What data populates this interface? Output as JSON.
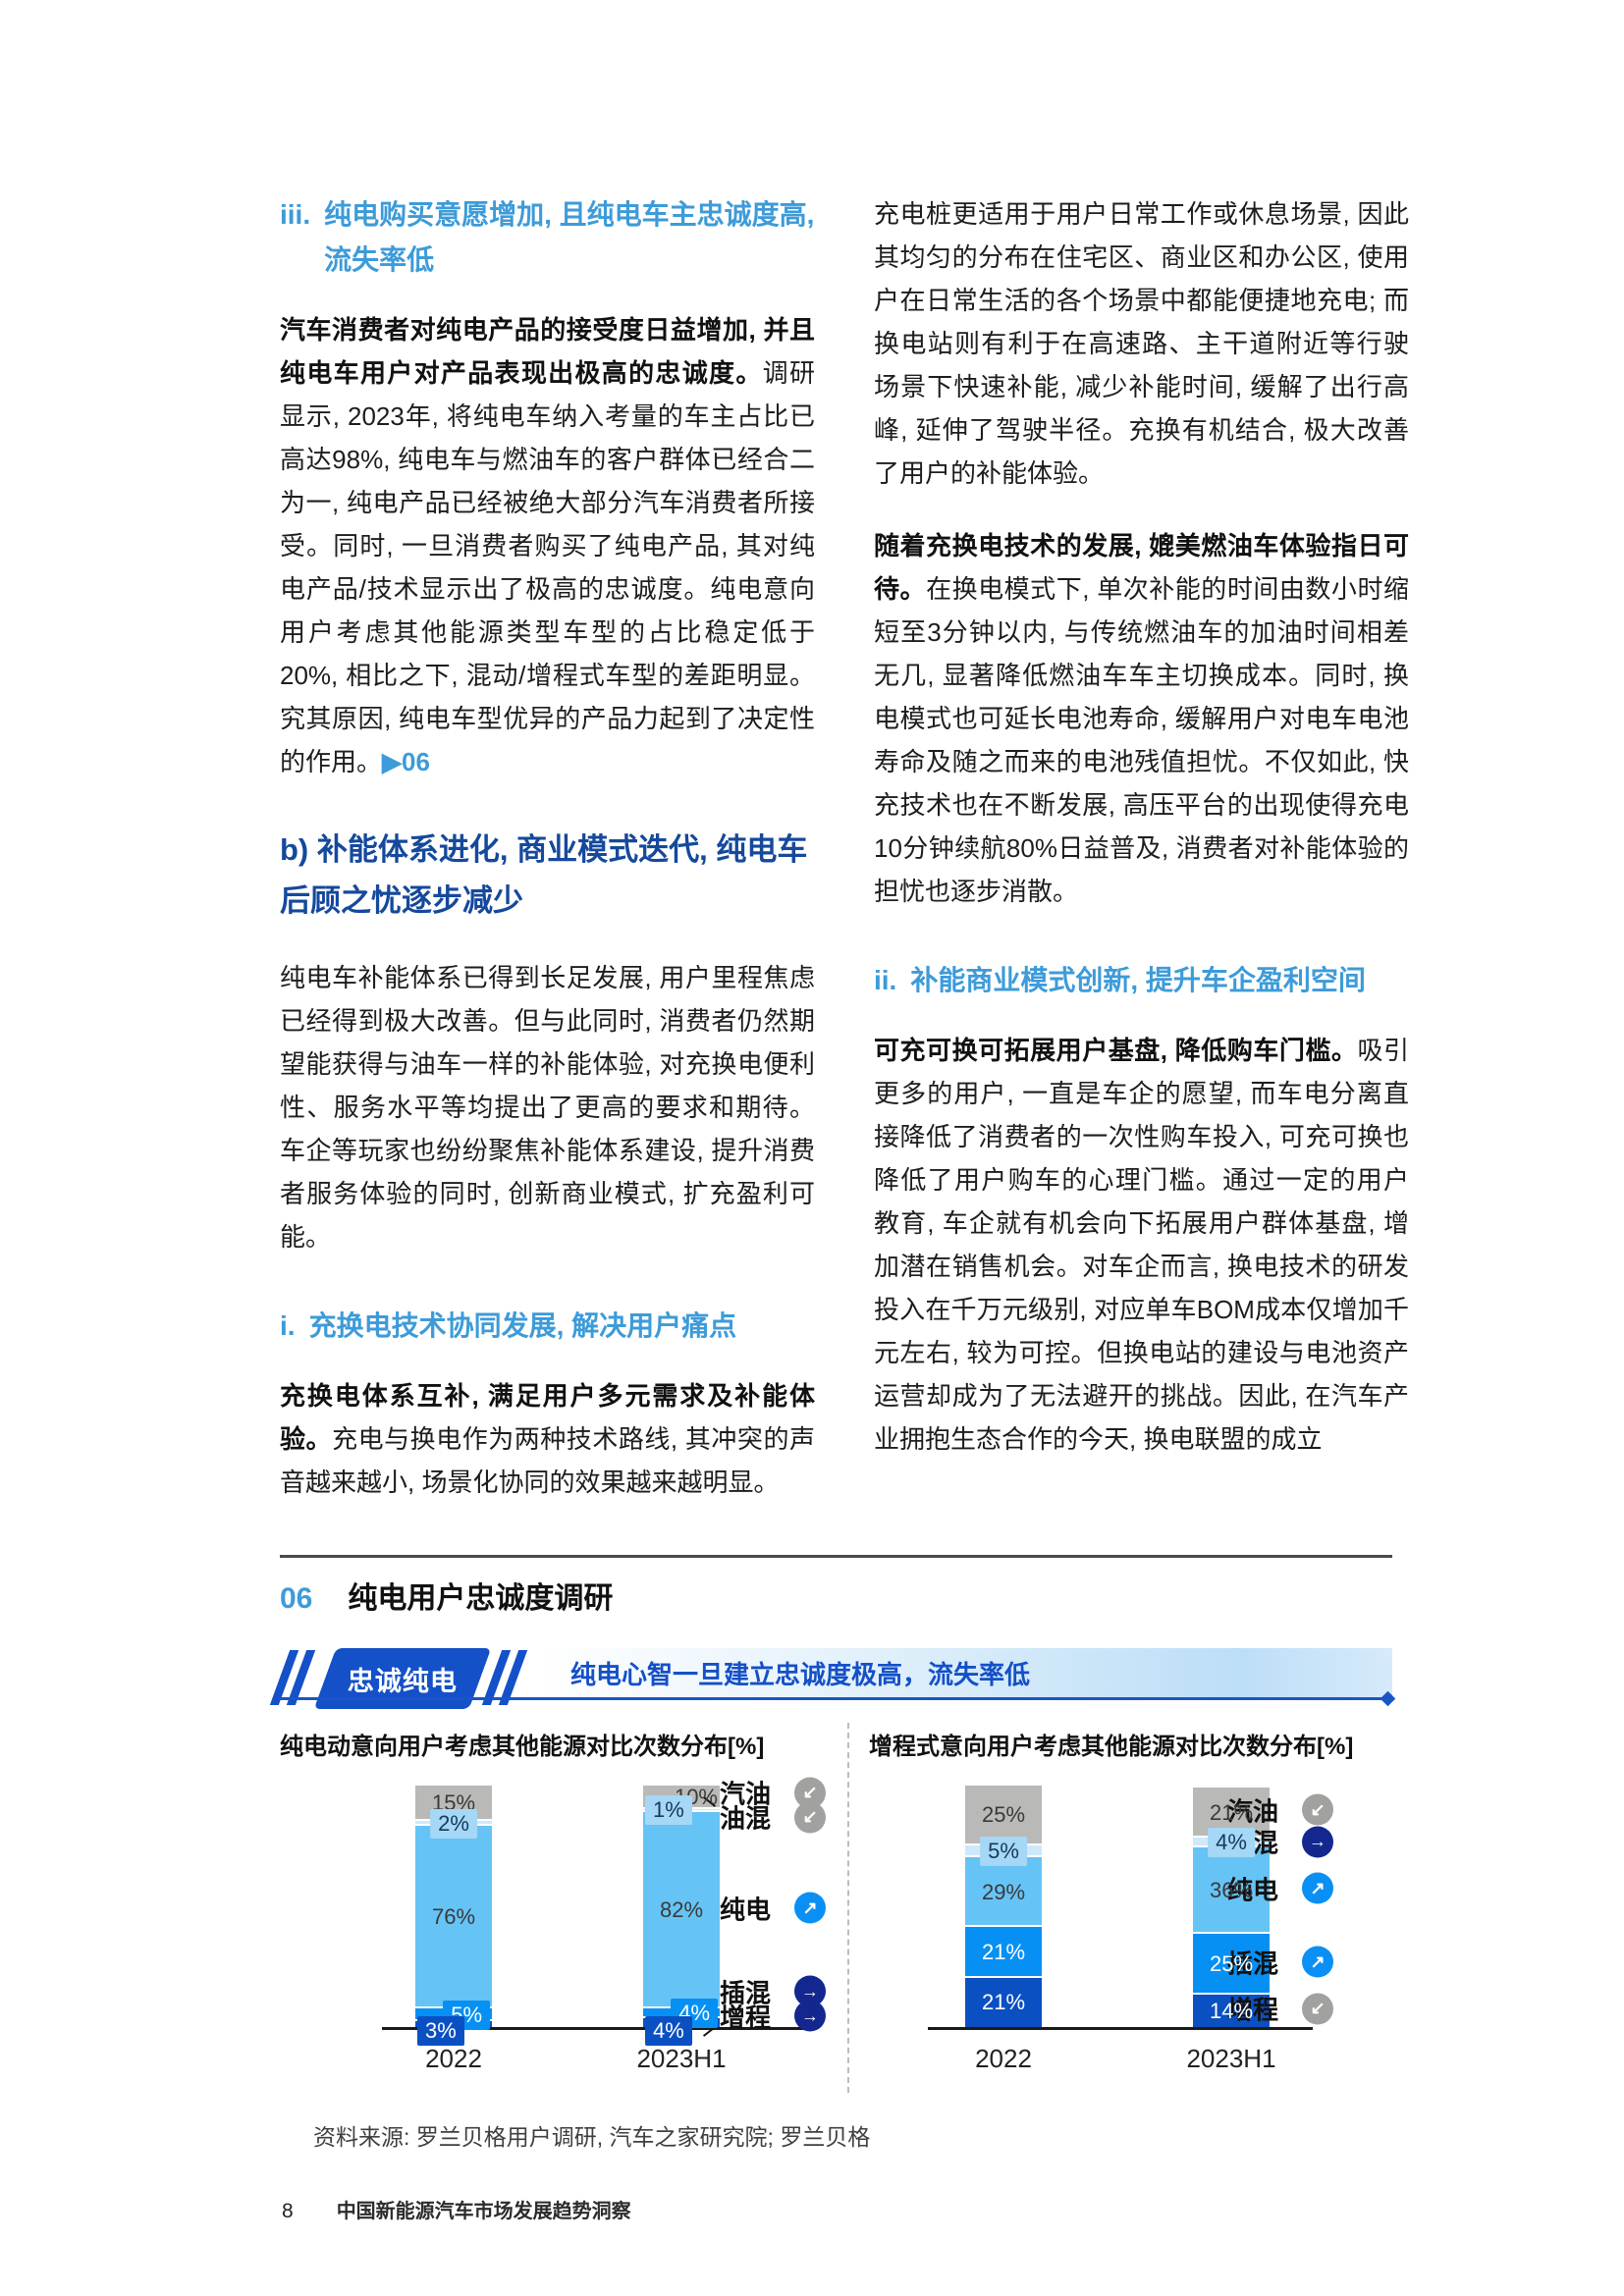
{
  "page": {
    "footer_page_number": "8",
    "footer_booklet_title": "中国新能源汽车市场发展趋势洞察"
  },
  "palette": {
    "gray": "#b9b9b7",
    "pale": "#cfe9fb",
    "sky": "#66c3f5",
    "azure": "#0790f4",
    "navy": "#0b50c2",
    "chip_pale_bg": "#a5d7f6",
    "legend_gray": "#a1a19f",
    "legend_navy": "#13278f",
    "legend_azure": "#0a8ff5",
    "accent_blue": "#1450c8",
    "heading_light_blue": "#3d9bd9",
    "heading_dark_blue": "#15499c"
  },
  "left_column": {
    "heading_iii": {
      "marker": "iii.",
      "text": "纯电购买意愿增加, 且纯电车主忠诚度高, 流失率低"
    },
    "para_1": {
      "bold": "汽车消费者对纯电产品的接受度日益增加, 并且纯电车用户对产品表现出极高的忠诚度。",
      "rest": "调研显示, 2023年, 将纯电车纳入考量的车主占比已高达98%, 纯电车与燃油车的客户群体已经合二为一, 纯电产品已经被绝大部分汽车消费者所接受。同时, 一旦消费者购买了纯电产品, 其对纯电产品/技术显示出了极高的忠诚度。纯电意向用户考虑其他能源类型车型的占比稳定低于20%, 相比之下, 混动/增程式车型的差距明显。究其原因, 纯电车型优异的产品力起到了决定性的作用。",
      "figref": "▶06"
    },
    "heading_b": "b) 补能体系进化, 商业模式迭代, 纯电车后顾之忧逐步减少",
    "para_2": "纯电车补能体系已得到长足发展, 用户里程焦虑已经得到极大改善。但与此同时, 消费者仍然期望能获得与油车一样的补能体验, 对充换电便利性、服务水平等均提出了更高的要求和期待。车企等玩家也纷纷聚焦补能体系建设, 提升消费者服务体验的同时, 创新商业模式, 扩充盈利可能。",
    "heading_i": {
      "marker": "i.",
      "text": "充换电技术协同发展, 解决用户痛点"
    },
    "para_3": {
      "bold": "充换电体系互补, 满足用户多元需求及补能体验。",
      "rest": "充电与换电作为两种技术路线, 其冲突的声音越来越小, 场景化协同的效果越来越明显。"
    }
  },
  "right_column": {
    "para_1": "充电桩更适用于用户日常工作或休息场景, 因此其均匀的分布在住宅区、商业区和办公区, 使用户在日常生活的各个场景中都能便捷地充电; 而换电站则有利于在高速路、主干道附近等行驶场景下快速补能, 减少补能时间, 缓解了出行高峰, 延伸了驾驶半径。充换有机结合, 极大改善了用户的补能体验。",
    "para_2": {
      "bold": "随着充换电技术的发展, 媲美燃油车体验指日可待。",
      "rest": "在换电模式下, 单次补能的时间由数小时缩短至3分钟以内, 与传统燃油车的加油时间相差无几, 显著降低燃油车车主切换成本。同时, 换电模式也可延长电池寿命, 缓解用户对电车电池寿命及随之而来的电池残值担忧。不仅如此, 快充技术也在不断发展, 高压平台的出现使得充电10分钟续航80%日益普及, 消费者对补能体验的担忧也逐步消散。"
    },
    "heading_ii": {
      "marker": "ii.",
      "text": "补能商业模式创新, 提升车企盈利空间"
    },
    "para_3": {
      "bold": "可充可换可拓展用户基盘, 降低购车门槛。",
      "rest": "吸引更多的用户, 一直是车企的愿望, 而车电分离直接降低了消费者的一次性购车投入, 可充可换也降低了用户购车的心理门槛。通过一定的用户教育, 车企就有机会向下拓展用户群体基盘, 增加潜在销售机会。对车企而言, 换电技术的研发投入在千万元级别, 对应单车BOM成本仅增加千元左右, 较为可控。但换电站的建设与电池资产运营却成为了无法避开的挑战。因此, 在汽车产业拥抱生态合作的今天, 换电联盟的成立"
    }
  },
  "figure": {
    "number": "06",
    "title": "纯电用户忠诚度调研",
    "ribbon_badge": "忠诚纯电",
    "ribbon_text": "纯电心智一旦建立忠诚度极高，流失率低",
    "source": "资料来源: 罗兰贝格用户调研, 汽车之家研究院; 罗兰贝格"
  },
  "chart_data": [
    {
      "type": "bar",
      "stacked": true,
      "title": "纯电动意向用户考虑其他能源对比次数分布[%]",
      "unit": "%",
      "categories": [
        "2022",
        "2023H1"
      ],
      "ylim": [
        0,
        100
      ],
      "grid": false,
      "legend_position": "right",
      "series": [
        {
          "name": "增程",
          "color": "navy",
          "values": [
            3,
            4
          ]
        },
        {
          "name": "插混",
          "color": "azure",
          "values": [
            5,
            4
          ]
        },
        {
          "name": "纯电",
          "color": "sky",
          "values": [
            76,
            82
          ]
        },
        {
          "name": "油混",
          "color": "pale",
          "values": [
            2,
            1
          ]
        },
        {
          "name": "汽油",
          "color": "gray",
          "values": [
            15,
            10
          ]
        }
      ],
      "labels": [
        {
          "bar": 0,
          "series": "汽油",
          "text": "15%",
          "style": "plain-dark",
          "pos": "center"
        },
        {
          "bar": 0,
          "series": "油混",
          "text": "2%",
          "style": "chip-pale",
          "pos": "center"
        },
        {
          "bar": 0,
          "series": "纯电",
          "text": "76%",
          "style": "plain-dark",
          "pos": "center"
        },
        {
          "bar": 0,
          "series": "插混",
          "text": "5%",
          "style": "chip-azure",
          "pos": "right"
        },
        {
          "bar": 0,
          "series": "增程",
          "text": "3%",
          "style": "chip-navy",
          "pos": "left",
          "drop": true
        },
        {
          "bar": 1,
          "series": "汽油",
          "text": "10%",
          "style": "plain-dark",
          "pos": "right"
        },
        {
          "bar": 1,
          "series": "油混",
          "text": "1%",
          "style": "chip-pale",
          "pos": "left"
        },
        {
          "bar": 1,
          "series": "纯电",
          "text": "82%",
          "style": "plain-dark",
          "pos": "center"
        },
        {
          "bar": 1,
          "series": "插混",
          "text": "4%",
          "style": "chip-azure",
          "pos": "right"
        },
        {
          "bar": 1,
          "series": "增程",
          "text": "4%",
          "style": "chip-navy",
          "pos": "left",
          "drop": true
        }
      ],
      "legend": [
        {
          "label": "汽油",
          "icon": "arrow-down-left-icon",
          "icon_color": "gray",
          "pos_pct": 4
        },
        {
          "label": "油混",
          "icon": "arrow-down-left-icon",
          "icon_color": "gray",
          "pos_pct": 14,
          "connector": "down"
        },
        {
          "label": "纯电",
          "icon": "arrow-up-right-icon",
          "icon_color": "azure",
          "pos_pct": 51
        },
        {
          "label": "插混",
          "icon": "arrow-right-icon",
          "icon_color": "navy",
          "pos_pct": 85,
          "connector": "up"
        },
        {
          "label": "增程",
          "icon": "arrow-right-icon",
          "icon_color": "navy",
          "pos_pct": 95,
          "connector": "up"
        }
      ]
    },
    {
      "type": "bar",
      "stacked": true,
      "title": "增程式意向用户考虑其他能源对比次数分布[%]",
      "unit": "%",
      "categories": [
        "2022",
        "2023H1"
      ],
      "ylim": [
        0,
        100
      ],
      "grid": false,
      "legend_position": "right",
      "series": [
        {
          "name": "增程",
          "color": "navy",
          "values": [
            21,
            14
          ]
        },
        {
          "name": "插混",
          "color": "azure",
          "values": [
            21,
            25
          ]
        },
        {
          "name": "纯电",
          "color": "sky",
          "values": [
            29,
            36
          ]
        },
        {
          "name": "油混",
          "color": "pale",
          "values": [
            5,
            4
          ]
        },
        {
          "name": "汽油",
          "color": "gray",
          "values": [
            25,
            21
          ]
        }
      ],
      "labels": [
        {
          "bar": 0,
          "series": "汽油",
          "text": "25%",
          "style": "plain-dark",
          "pos": "center"
        },
        {
          "bar": 0,
          "series": "油混",
          "text": "5%",
          "style": "chip-pale",
          "pos": "center"
        },
        {
          "bar": 0,
          "series": "纯电",
          "text": "29%",
          "style": "plain-dark",
          "pos": "center"
        },
        {
          "bar": 0,
          "series": "插混",
          "text": "21%",
          "style": "plain-white",
          "pos": "center"
        },
        {
          "bar": 0,
          "series": "增程",
          "text": "21%",
          "style": "plain-white",
          "pos": "center"
        },
        {
          "bar": 1,
          "series": "汽油",
          "text": "21%",
          "style": "plain-dark",
          "pos": "center"
        },
        {
          "bar": 1,
          "series": "油混",
          "text": "4%",
          "style": "chip-pale",
          "pos": "center"
        },
        {
          "bar": 1,
          "series": "纯电",
          "text": "36%",
          "style": "plain-dark",
          "pos": "center"
        },
        {
          "bar": 1,
          "series": "插混",
          "text": "25%",
          "style": "plain-white",
          "pos": "center"
        },
        {
          "bar": 1,
          "series": "增程",
          "text": "14%",
          "style": "plain-white",
          "pos": "center"
        }
      ],
      "legend": [
        {
          "label": "汽油",
          "icon": "arrow-down-left-icon",
          "icon_color": "gray",
          "pos_pct": 11
        },
        {
          "label": "油混",
          "icon": "arrow-right-icon",
          "icon_color": "navy",
          "pos_pct": 24
        },
        {
          "label": "纯电",
          "icon": "arrow-up-right-icon",
          "icon_color": "azure",
          "pos_pct": 43
        },
        {
          "label": "插混",
          "icon": "arrow-up-right-icon",
          "icon_color": "azure",
          "pos_pct": 73
        },
        {
          "label": "增程",
          "icon": "arrow-down-left-icon",
          "icon_color": "gray",
          "pos_pct": 92
        }
      ]
    }
  ]
}
